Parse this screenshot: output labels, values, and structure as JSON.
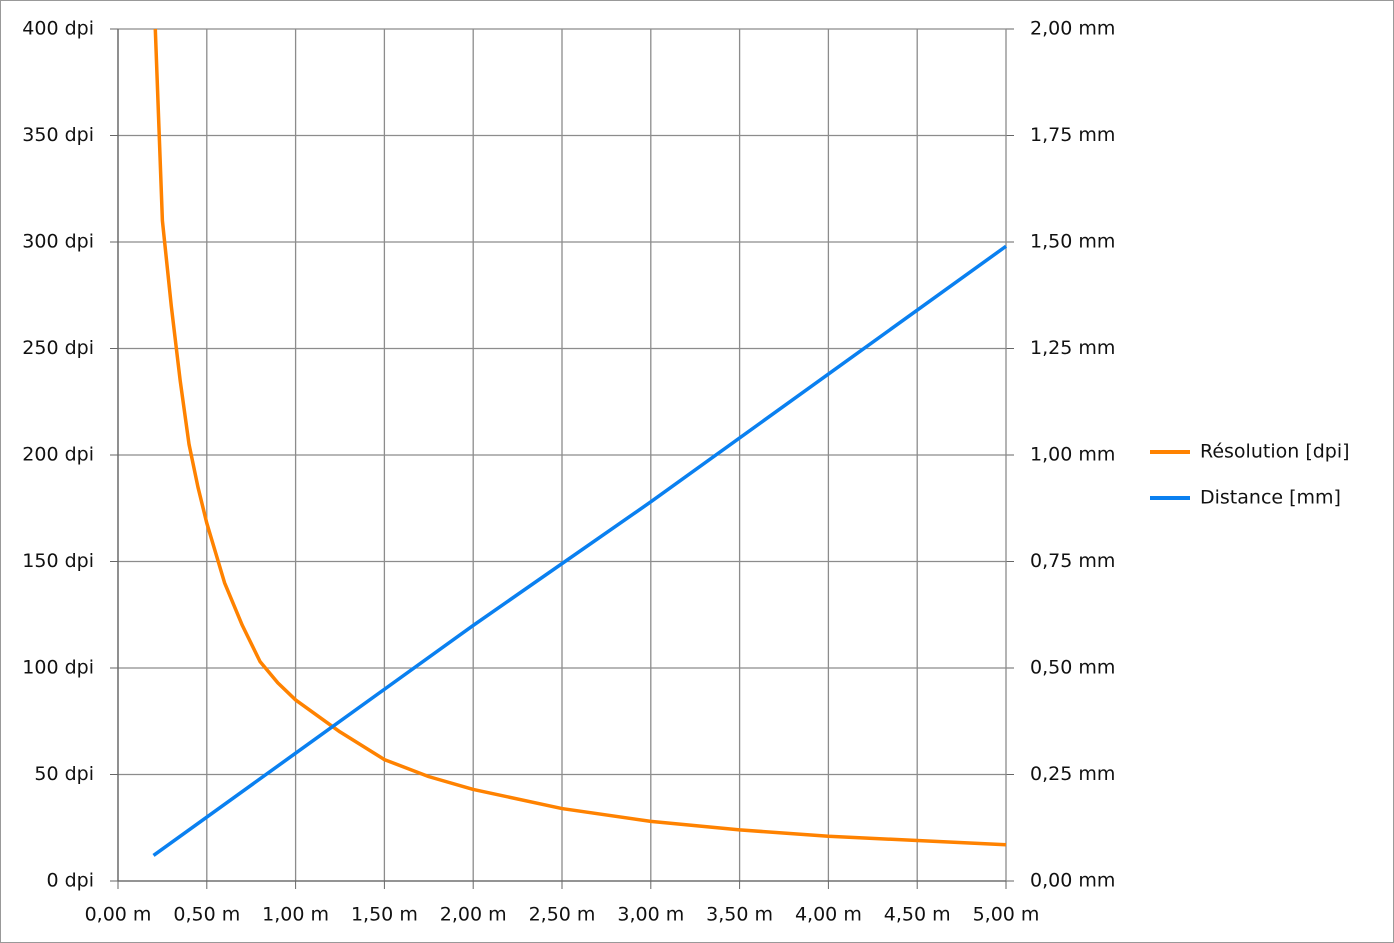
{
  "chart_data": {
    "type": "line",
    "series": [
      {
        "name": "Résolution [dpi]",
        "color": "#ff8200",
        "axis": "y",
        "x": [
          0.21,
          0.25,
          0.3,
          0.35,
          0.4,
          0.45,
          0.5,
          0.6,
          0.7,
          0.8,
          0.9,
          1.0,
          1.25,
          1.5,
          1.75,
          2.0,
          2.5,
          3.0,
          3.5,
          4.0,
          4.5,
          5.0
        ],
        "values": [
          400,
          310,
          270,
          235,
          205,
          185,
          168,
          140,
          120,
          103,
          93,
          85,
          70,
          57,
          49,
          43,
          34,
          28,
          24,
          21,
          19,
          17
        ]
      },
      {
        "name": "Distance [mm]",
        "color": "#0a80f0",
        "axis": "y2",
        "x": [
          0.2,
          1.0,
          2.0,
          3.0,
          4.0,
          5.0
        ],
        "values": [
          0.06,
          0.3,
          0.6,
          0.89,
          1.19,
          1.49
        ]
      }
    ],
    "xlim": [
      0,
      5
    ],
    "xticks": [
      {
        "value": 0,
        "label": "0,00 m"
      },
      {
        "value": 0.5,
        "label": "0,50 m"
      },
      {
        "value": 1,
        "label": "1,00 m"
      },
      {
        "value": 1.5,
        "label": "1,50 m"
      },
      {
        "value": 2,
        "label": "2,00 m"
      },
      {
        "value": 2.5,
        "label": "2,50 m"
      },
      {
        "value": 3,
        "label": "3,00 m"
      },
      {
        "value": 3.5,
        "label": "3,50 m"
      },
      {
        "value": 4,
        "label": "4,00 m"
      },
      {
        "value": 4.5,
        "label": "4,50 m"
      },
      {
        "value": 5,
        "label": "5,00 m"
      }
    ],
    "ylim": [
      0,
      400
    ],
    "yticks": [
      {
        "value": 0,
        "label": "0 dpi"
      },
      {
        "value": 50,
        "label": "50 dpi"
      },
      {
        "value": 100,
        "label": "100 dpi"
      },
      {
        "value": 150,
        "label": "150 dpi"
      },
      {
        "value": 200,
        "label": "200 dpi"
      },
      {
        "value": 250,
        "label": "250 dpi"
      },
      {
        "value": 300,
        "label": "300 dpi"
      },
      {
        "value": 350,
        "label": "350 dpi"
      },
      {
        "value": 400,
        "label": "400 dpi"
      }
    ],
    "y2lim": [
      0,
      2
    ],
    "y2ticks": [
      {
        "value": 0,
        "label": "0,00 mm"
      },
      {
        "value": 0.25,
        "label": "0,25 mm"
      },
      {
        "value": 0.5,
        "label": "0,50 mm"
      },
      {
        "value": 0.75,
        "label": "0,75 mm"
      },
      {
        "value": 1,
        "label": "1,00 mm"
      },
      {
        "value": 1.25,
        "label": "1,25 mm"
      },
      {
        "value": 1.5,
        "label": "1,50 mm"
      },
      {
        "value": 1.75,
        "label": "1,75 mm"
      },
      {
        "value": 2,
        "label": "2,00 mm"
      }
    ],
    "grid": true,
    "legend": "right"
  }
}
